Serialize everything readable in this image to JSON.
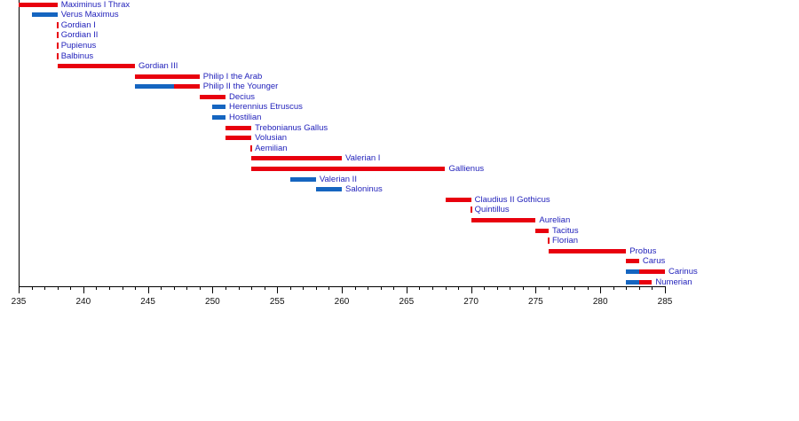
{
  "chart_data": {
    "type": "bar",
    "subtype": "gantt-timeline",
    "title": "",
    "xlabel": "",
    "ylabel": "",
    "x_axis": {
      "min": 235,
      "max": 285,
      "major_tick_step": 5,
      "minor_tick_step": 1,
      "tick_labels": [
        "235",
        "240",
        "245",
        "250",
        "255",
        "260",
        "265",
        "270",
        "275",
        "280",
        "285"
      ]
    },
    "colors": {
      "red_bar": "#e8000e",
      "blue_bar": "#1565c0",
      "label_text": "#2222bb",
      "axis": "#000000"
    },
    "rows": [
      {
        "label": "Maximinus I Thrax",
        "segments": [
          {
            "color": "red",
            "start": 235,
            "end": 238
          }
        ]
      },
      {
        "label": "Verus Maximus",
        "segments": [
          {
            "color": "blue",
            "start": 236,
            "end": 238
          }
        ]
      },
      {
        "label": "Gordian I",
        "segments": [
          {
            "color": "red",
            "start": 238,
            "end": 238
          }
        ]
      },
      {
        "label": "Gordian II",
        "segments": [
          {
            "color": "red",
            "start": 238,
            "end": 238
          }
        ]
      },
      {
        "label": "Pupienus",
        "segments": [
          {
            "color": "red",
            "start": 238,
            "end": 238
          }
        ]
      },
      {
        "label": "Balbinus",
        "segments": [
          {
            "color": "red",
            "start": 238,
            "end": 238
          }
        ]
      },
      {
        "label": "Gordian III",
        "segments": [
          {
            "color": "red",
            "start": 238,
            "end": 244
          }
        ]
      },
      {
        "label": "Philip I the Arab",
        "segments": [
          {
            "color": "red",
            "start": 244,
            "end": 249
          }
        ]
      },
      {
        "label": "Philip II the Younger",
        "segments": [
          {
            "color": "blue",
            "start": 244,
            "end": 247
          },
          {
            "color": "red",
            "start": 247,
            "end": 249
          }
        ]
      },
      {
        "label": "Decius",
        "segments": [
          {
            "color": "red",
            "start": 249,
            "end": 251
          }
        ]
      },
      {
        "label": "Herennius Etruscus",
        "segments": [
          {
            "color": "blue",
            "start": 250,
            "end": 251
          }
        ]
      },
      {
        "label": "Hostilian",
        "segments": [
          {
            "color": "blue",
            "start": 250,
            "end": 251
          }
        ]
      },
      {
        "label": "Trebonianus Gallus",
        "segments": [
          {
            "color": "red",
            "start": 251,
            "end": 253
          }
        ]
      },
      {
        "label": "Volusian",
        "segments": [
          {
            "color": "red",
            "start": 251,
            "end": 253
          }
        ]
      },
      {
        "label": "Aemilian",
        "segments": [
          {
            "color": "red",
            "start": 253,
            "end": 253
          }
        ]
      },
      {
        "label": "Valerian I",
        "segments": [
          {
            "color": "red",
            "start": 253,
            "end": 260
          }
        ]
      },
      {
        "label": "Gallienus",
        "segments": [
          {
            "color": "red",
            "start": 253,
            "end": 268
          }
        ]
      },
      {
        "label": "Valerian II",
        "segments": [
          {
            "color": "blue",
            "start": 256,
            "end": 258
          }
        ]
      },
      {
        "label": "Saloninus",
        "segments": [
          {
            "color": "blue",
            "start": 258,
            "end": 260
          }
        ]
      },
      {
        "label": "Claudius II Gothicus",
        "segments": [
          {
            "color": "red",
            "start": 268,
            "end": 270
          }
        ]
      },
      {
        "label": "Quintillus",
        "segments": [
          {
            "color": "red",
            "start": 270,
            "end": 270
          }
        ]
      },
      {
        "label": "Aurelian",
        "segments": [
          {
            "color": "red",
            "start": 270,
            "end": 275
          }
        ]
      },
      {
        "label": "Tacitus",
        "segments": [
          {
            "color": "red",
            "start": 275,
            "end": 276
          }
        ]
      },
      {
        "label": "Florian",
        "segments": [
          {
            "color": "red",
            "start": 276,
            "end": 276
          }
        ]
      },
      {
        "label": "Probus",
        "segments": [
          {
            "color": "red",
            "start": 276,
            "end": 282
          }
        ]
      },
      {
        "label": "Carus",
        "segments": [
          {
            "color": "red",
            "start": 282,
            "end": 283
          }
        ]
      },
      {
        "label": "Carinus",
        "segments": [
          {
            "color": "blue",
            "start": 282,
            "end": 283
          },
          {
            "color": "red",
            "start": 283,
            "end": 285
          }
        ]
      },
      {
        "label": "Numerian",
        "segments": [
          {
            "color": "blue",
            "start": 282,
            "end": 283
          },
          {
            "color": "red",
            "start": 283,
            "end": 284
          }
        ]
      }
    ]
  }
}
